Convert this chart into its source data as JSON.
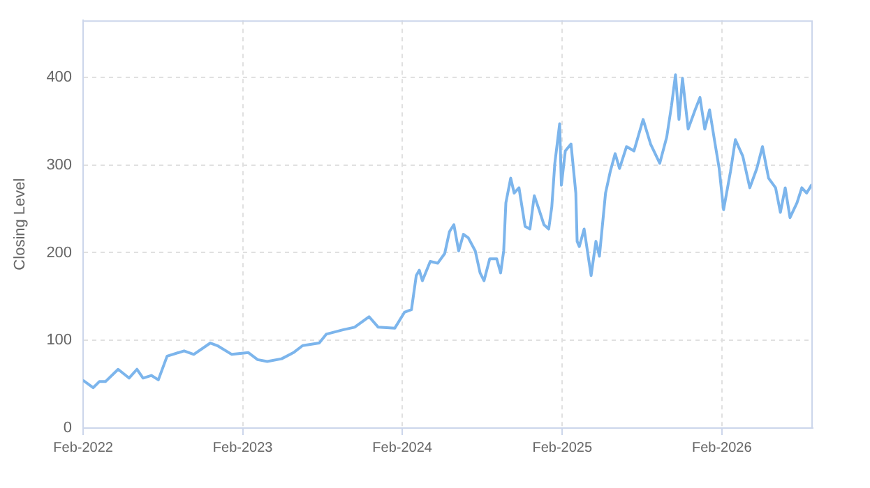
{
  "chart_data": {
    "type": "line",
    "ylabel": "Closing Level",
    "grid": true,
    "legend": false,
    "marker": "none",
    "line_style": "solid",
    "xlim": [
      "2022-02-01",
      "2026-08-28"
    ],
    "xticks": [
      {
        "value": "2022-02-01",
        "label": "Feb-2022"
      },
      {
        "value": "2023-02-01",
        "label": "Feb-2023"
      },
      {
        "value": "2024-02-01",
        "label": "Feb-2024"
      },
      {
        "value": "2025-02-01",
        "label": "Feb-2025"
      },
      {
        "value": "2026-02-01",
        "label": "Feb-2026"
      }
    ],
    "ylim": [
      0,
      465
    ],
    "yticks": [
      0,
      100,
      200,
      300,
      400
    ],
    "x": [
      "2022-02-02",
      "2022-02-24",
      "2022-03-10",
      "2022-03-24",
      "2022-04-22",
      "2022-05-17",
      "2022-06-04",
      "2022-06-18",
      "2022-07-07",
      "2022-07-23",
      "2022-08-12",
      "2022-09-20",
      "2022-10-12",
      "2022-11-19",
      "2022-12-05",
      "2023-01-07",
      "2023-02-14",
      "2023-03-07",
      "2023-03-29",
      "2023-05-01",
      "2023-05-28",
      "2023-06-18",
      "2023-07-26",
      "2023-08-11",
      "2023-09-18",
      "2023-10-15",
      "2023-11-17",
      "2023-12-08",
      "2024-01-15",
      "2024-02-06",
      "2024-02-22",
      "2024-03-04",
      "2024-03-11",
      "2024-03-18",
      "2024-04-05",
      "2024-04-22",
      "2024-05-08",
      "2024-05-19",
      "2024-05-29",
      "2024-06-09",
      "2024-06-20",
      "2024-07-01",
      "2024-07-17",
      "2024-07-28",
      "2024-08-06",
      "2024-08-19",
      "2024-09-04",
      "2024-09-13",
      "2024-09-20",
      "2024-09-25",
      "2024-10-06",
      "2024-10-14",
      "2024-10-25",
      "2024-11-08",
      "2024-11-19",
      "2024-11-29",
      "2024-12-10",
      "2024-12-21",
      "2025-01-01",
      "2025-01-08",
      "2025-01-15",
      "2025-01-26",
      "2025-01-30",
      "2025-02-08",
      "2025-02-21",
      "2025-03-04",
      "2025-03-07",
      "2025-03-12",
      "2025-03-23",
      "2025-04-08",
      "2025-04-19",
      "2025-04-27",
      "2025-05-11",
      "2025-05-22",
      "2025-06-02",
      "2025-06-12",
      "2025-06-28",
      "2025-07-15",
      "2025-08-05",
      "2025-08-22",
      "2025-09-12",
      "2025-09-28",
      "2025-10-09",
      "2025-10-18",
      "2025-10-26",
      "2025-11-03",
      "2025-11-16",
      "2025-12-02",
      "2025-12-13",
      "2025-12-24",
      "2026-01-04",
      "2026-01-15",
      "2026-01-26",
      "2026-02-05",
      "2026-02-21",
      "2026-03-04",
      "2026-03-21",
      "2026-04-06",
      "2026-04-22",
      "2026-05-05",
      "2026-05-19",
      "2026-06-04",
      "2026-06-15",
      "2026-06-26",
      "2026-07-07",
      "2026-07-23",
      "2026-08-03",
      "2026-08-14",
      "2026-08-25"
    ],
    "series": [
      {
        "color": "#7cb5ec",
        "values": [
          54,
          46,
          53,
          53,
          67,
          57,
          67,
          57,
          60,
          55,
          82,
          88,
          84,
          97,
          94,
          84,
          86,
          78,
          76,
          79,
          86,
          94,
          97,
          107,
          112,
          115,
          127,
          115,
          114,
          132,
          135,
          174,
          180,
          168,
          190,
          188,
          199,
          224,
          232,
          202,
          221,
          217,
          202,
          177,
          168,
          193,
          193,
          177,
          202,
          257,
          285,
          268,
          274,
          230,
          227,
          265,
          249,
          232,
          227,
          252,
          302,
          347,
          277,
          316,
          324,
          268,
          213,
          207,
          227,
          174,
          213,
          196,
          268,
          293,
          313,
          296,
          321,
          316,
          352,
          324,
          302,
          332,
          368,
          403,
          352,
          399,
          341,
          363,
          377,
          341,
          363,
          329,
          296,
          249,
          293,
          329,
          310,
          274,
          296,
          321,
          285,
          274,
          246,
          274,
          240,
          257,
          274,
          268,
          277
        ]
      }
    ]
  }
}
